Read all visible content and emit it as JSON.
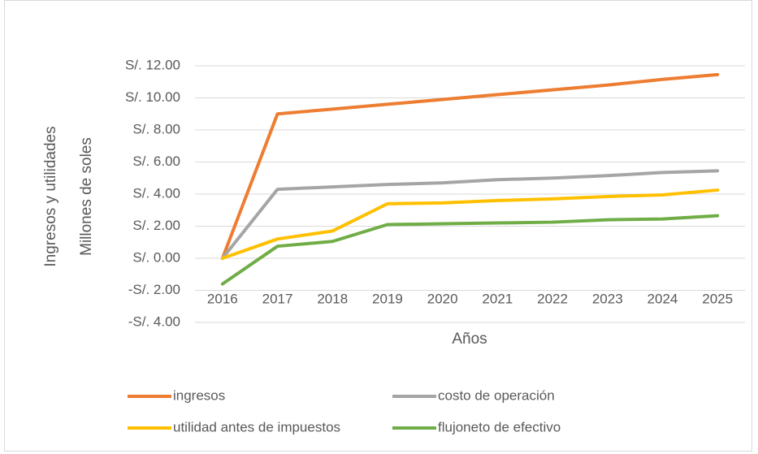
{
  "chart_data": {
    "type": "line",
    "ylabel": [
      "Ingresos y utilidades",
      "Millones de soles"
    ],
    "xlabel": "Años",
    "categories": [
      "2016",
      "2017",
      "2018",
      "2019",
      "2020",
      "2021",
      "2022",
      "2023",
      "2024",
      "2025"
    ],
    "series": [
      {
        "name": "ingresos",
        "color": "#ED7D31",
        "values": [
          0,
          9.0,
          9.3,
          9.6,
          9.9,
          10.2,
          10.5,
          10.8,
          11.15,
          11.45
        ]
      },
      {
        "name": "costo de operación",
        "color": "#A5A5A5",
        "values": [
          0,
          4.3,
          4.45,
          4.6,
          4.7,
          4.9,
          5.0,
          5.15,
          5.35,
          5.45
        ]
      },
      {
        "name": "utilidad antes de impuestos",
        "color": "#FFC000",
        "values": [
          0,
          1.2,
          1.7,
          3.4,
          3.45,
          3.6,
          3.7,
          3.85,
          3.95,
          4.25
        ]
      },
      {
        "name": "flujoneto de efectivo",
        "color": "#70AD47",
        "values": [
          -1.6,
          0.75,
          1.05,
          2.1,
          2.15,
          2.2,
          2.25,
          2.4,
          2.45,
          2.65
        ]
      }
    ],
    "ylim": [
      -4,
      12
    ],
    "yticks": [
      {
        "value": 12,
        "label": "S/. 12.00"
      },
      {
        "value": 10,
        "label": "S/. 10.00"
      },
      {
        "value": 8,
        "label": "S/. 8.00"
      },
      {
        "value": 6,
        "label": "S/. 6.00"
      },
      {
        "value": 4,
        "label": "S/. 4.00"
      },
      {
        "value": 2,
        "label": "S/. 2.00"
      },
      {
        "value": 0,
        "label": "S/. 0.00"
      },
      {
        "value": -2,
        "label": "-S/. 2.00"
      },
      {
        "value": -4,
        "label": "-S/. 4.00"
      }
    ],
    "grid": true,
    "legend": "bottom"
  }
}
